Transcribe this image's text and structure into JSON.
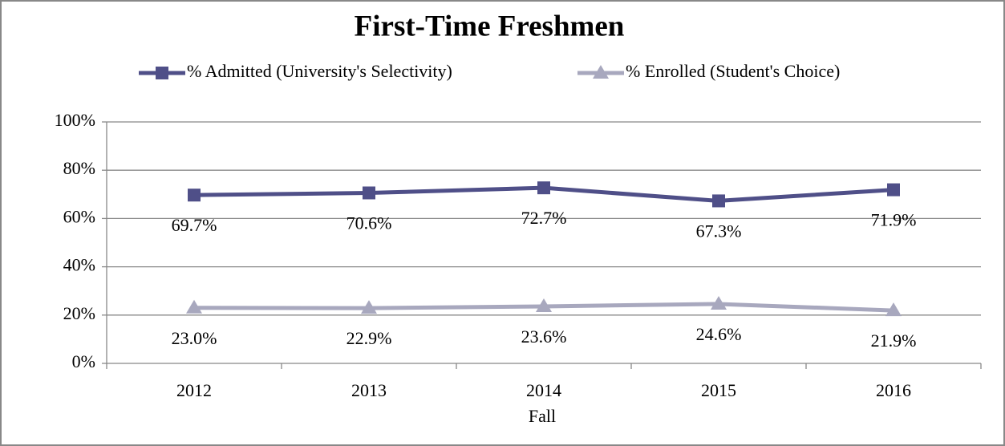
{
  "chart_data": {
    "type": "line",
    "title": "First-Time Freshmen",
    "x_label": "Fall",
    "categories": [
      "2012",
      "2013",
      "2014",
      "2015",
      "2016"
    ],
    "series": [
      {
        "name": "% Admitted (University's Selectivity)",
        "color": "#4f4f88",
        "marker": "square",
        "values": [
          69.7,
          70.6,
          72.7,
          67.3,
          71.9
        ],
        "value_labels": [
          "69.7%",
          "70.6%",
          "72.7%",
          "67.3%",
          "71.9%"
        ]
      },
      {
        "name": "% Enrolled (Student's Choice)",
        "color": "#a8a8be",
        "marker": "triangle",
        "values": [
          23.0,
          22.9,
          23.6,
          24.6,
          21.9
        ],
        "value_labels": [
          "23.0%",
          "22.9%",
          "23.6%",
          "24.6%",
          "21.9%"
        ]
      }
    ],
    "ylim": [
      0,
      100
    ],
    "yticks": [
      {
        "value": 0,
        "label": "0%"
      },
      {
        "value": 20,
        "label": "20%"
      },
      {
        "value": 40,
        "label": "40%"
      },
      {
        "value": 60,
        "label": "60%"
      },
      {
        "value": 80,
        "label": "80%"
      },
      {
        "value": 100,
        "label": "100%"
      }
    ],
    "grid": true,
    "legend": "top"
  }
}
